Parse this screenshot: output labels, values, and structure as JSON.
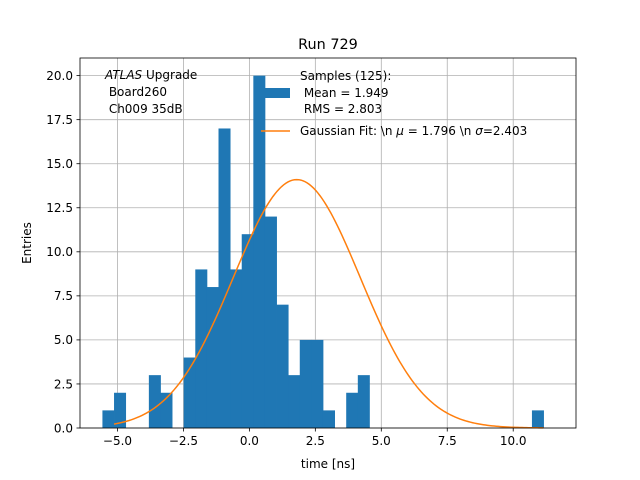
{
  "chart_data": {
    "type": "bar",
    "title": "Run 729",
    "xlabel": "time [ns]",
    "ylabel": "Entries",
    "xlim": [
      -6.42,
      12.38
    ],
    "ylim": [
      0,
      21
    ],
    "grid": true,
    "xticks": [
      -5.0,
      -2.5,
      0.0,
      2.5,
      5.0,
      7.5,
      10.0
    ],
    "xtick_labels": [
      "−5.0",
      "−2.5",
      "0.0",
      "2.5",
      "5.0",
      "7.5",
      "10.0"
    ],
    "yticks": [
      0,
      2.5,
      5,
      7.5,
      10,
      12.5,
      15,
      17.5,
      20
    ],
    "ytick_labels": [
      "0.0",
      "2.5",
      "5.0",
      "7.5",
      "10.0",
      "12.5",
      "15.0",
      "17.5",
      "20.0"
    ],
    "bin_edges": [
      -5.57,
      -5.09,
      -4.18,
      -3.27,
      -2.36,
      -1.45,
      -0.54,
      0.37,
      1.28,
      2.19,
      3.1,
      4.01,
      4.92,
      5.83,
      6.74,
      7.65,
      8.56,
      9.47,
      10.38,
      11.29,
      11.75
    ],
    "bin_edges_note": "manual",
    "histogram": {
      "name": "Samples (125)",
      "edges": [
        -5.57,
        -5.13,
        -4.69,
        -4.25,
        -3.81,
        -3.37,
        -2.93,
        -2.49,
        -2.05,
        -1.61,
        -1.17,
        -0.73,
        -0.29,
        0.15,
        0.59,
        1.03,
        1.47,
        1.91,
        2.35,
        2.79,
        3.23,
        3.67,
        4.11,
        4.55,
        4.99,
        5.43,
        5.87,
        6.31,
        6.75,
        7.19,
        7.63,
        8.07,
        8.51,
        8.95,
        9.39,
        9.83,
        10.27,
        10.71,
        11.15,
        11.59
      ],
      "counts": [
        1,
        2,
        0,
        0,
        3,
        2,
        0,
        4,
        9,
        8,
        17,
        9,
        11,
        20,
        12,
        7,
        3,
        5,
        5,
        1,
        0,
        2,
        3,
        0,
        0,
        0,
        0,
        0,
        0,
        0,
        0,
        0,
        0,
        0,
        0,
        0,
        0,
        1,
        0
      ],
      "color": "#1f77b4"
    },
    "fit": {
      "name": "Gaussian Fit",
      "amplitude": 14.1,
      "mu": 1.796,
      "sigma": 2.403,
      "x_range": [
        -5.13,
        11.15
      ],
      "color": "#ff7f0e"
    },
    "annotation": {
      "line1_italic": "ATLAS",
      "line1_rest": " Upgrade",
      "line2": " Board260",
      "line3": " Ch009 35dB"
    },
    "legend": {
      "position": "top-center",
      "hist_line1": "Samples (125):",
      "hist_line2": " Mean = 1.949",
      "hist_line3": " RMS = 2.803",
      "fit_prefix": "Gaussian Fit: \\n ",
      "fit_mu_symbol": "μ",
      "fit_mid": " = 1.796 \\n ",
      "fit_sigma_symbol": "σ",
      "fit_suffix": "=2.403"
    }
  }
}
